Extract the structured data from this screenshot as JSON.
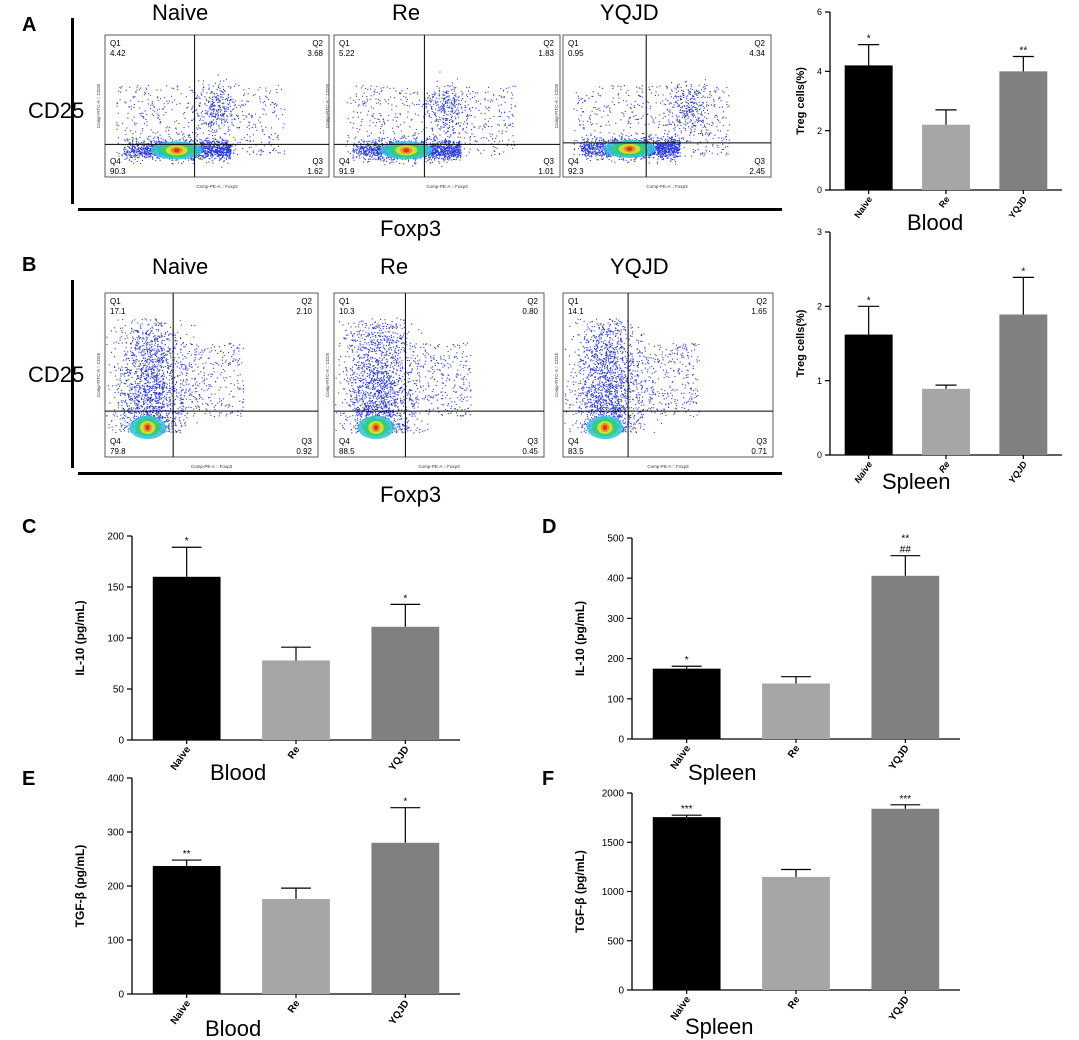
{
  "panel_letters": [
    "A",
    "B",
    "C",
    "D",
    "E",
    "F"
  ],
  "flow": {
    "groups": [
      "Naive",
      "Re",
      "YQJD"
    ],
    "ylabel": "CD25",
    "xlabel": "Foxp3",
    "plot_x_axis": "Comp-PE-A :: Foxp3",
    "plot_y_axis": "Comp-FITC-A :: CD25",
    "rows": [
      {
        "panel": "A",
        "quadrants": [
          {
            "Q1": "4.42",
            "Q2": "3.68",
            "Q3": "1.62",
            "Q4": "90.3"
          },
          {
            "Q1": "5.22",
            "Q2": "1.83",
            "Q3": "1.01",
            "Q4": "91.9"
          },
          {
            "Q1": "0.95",
            "Q2": "4.34",
            "Q3": "2.45",
            "Q4": "92.3"
          }
        ]
      },
      {
        "panel": "B",
        "quadrants": [
          {
            "Q1": "17.1",
            "Q2": "2.10",
            "Q3": "0.92",
            "Q4": "79.8"
          },
          {
            "Q1": "10.3",
            "Q2": "0.80",
            "Q3": "0.45",
            "Q4": "88.5"
          },
          {
            "Q1": "14.1",
            "Q2": "1.65",
            "Q3": "0.71",
            "Q4": "83.5"
          }
        ]
      }
    ]
  },
  "chart_data": [
    {
      "id": "A-bar",
      "type": "bar",
      "title": "",
      "xlabel": "Blood",
      "ylabel": "Treg cells(%)",
      "categories": [
        "Naive",
        "Re",
        "YQJD"
      ],
      "values": [
        4.2,
        2.2,
        4.0
      ],
      "errors": [
        0.7,
        0.5,
        0.5
      ],
      "annotations": [
        "*",
        "",
        "**"
      ],
      "ylim": [
        0,
        6
      ],
      "yticks": [
        0,
        2,
        4,
        6
      ],
      "italic_ticks": false,
      "colors": [
        "#000000",
        "#a6a6a9",
        "#808080"
      ]
    },
    {
      "id": "B-bar",
      "type": "bar",
      "title": "",
      "xlabel": "Spleen",
      "ylabel": "Treg cells(%)",
      "categories": [
        "Naive",
        "Re",
        "YQJD"
      ],
      "values": [
        1.62,
        0.89,
        1.89
      ],
      "errors": [
        0.38,
        0.05,
        0.5
      ],
      "annotations": [
        "*",
        "",
        "*"
      ],
      "ylim": [
        0,
        3
      ],
      "yticks": [
        0,
        1,
        2,
        3
      ],
      "italic_ticks": true,
      "colors": [
        "#000000",
        "#a6a6a9",
        "#808080"
      ]
    },
    {
      "id": "C",
      "type": "bar",
      "title": "",
      "xlabel": "Blood",
      "ylabel": "IL-10 (pg/mL)",
      "categories": [
        "Naive",
        "Re",
        "YQJD"
      ],
      "values": [
        160,
        78,
        111
      ],
      "errors": [
        29,
        13,
        22
      ],
      "annotations": [
        "*",
        "",
        "*"
      ],
      "ylim": [
        0,
        200
      ],
      "yticks": [
        0,
        50,
        100,
        150,
        200
      ],
      "italic_ticks": false,
      "colors": [
        "#000000",
        "#a6a6a9",
        "#808080"
      ]
    },
    {
      "id": "D",
      "type": "bar",
      "title": "",
      "xlabel": "Spleen",
      "ylabel": "IL-10 (pg/mL)",
      "categories": [
        "Naive",
        "Re",
        "YQJD"
      ],
      "values": [
        175,
        138,
        406
      ],
      "errors": [
        6,
        17,
        50
      ],
      "annotations": [
        "*",
        "",
        "**\n##"
      ],
      "ylim": [
        0,
        500
      ],
      "yticks": [
        0,
        100,
        200,
        300,
        400,
        500
      ],
      "italic_ticks": false,
      "colors": [
        "#000000",
        "#a6a6a9",
        "#808080"
      ]
    },
    {
      "id": "E",
      "type": "bar",
      "title": "",
      "xlabel": "Blood",
      "ylabel": "TGF-β (pg/mL)",
      "categories": [
        "Naive",
        "Re",
        "YQJD"
      ],
      "values": [
        237,
        176,
        280
      ],
      "errors": [
        11,
        20,
        65
      ],
      "annotations": [
        "**",
        "",
        "*"
      ],
      "ylim": [
        0,
        400
      ],
      "yticks": [
        0,
        100,
        200,
        300,
        400
      ],
      "italic_ticks": false,
      "colors": [
        "#000000",
        "#a6a6a9",
        "#808080"
      ]
    },
    {
      "id": "F",
      "type": "bar",
      "title": "",
      "xlabel": "Spleen",
      "ylabel": "TGF-β (pg/mL)",
      "categories": [
        "Naive",
        "Re",
        "YQJD"
      ],
      "values": [
        1755,
        1148,
        1840
      ],
      "errors": [
        20,
        75,
        40
      ],
      "annotations": [
        "***",
        "",
        "***"
      ],
      "ylim": [
        0,
        2000
      ],
      "yticks": [
        0,
        500,
        1000,
        1500,
        2000
      ],
      "italic_ticks": false,
      "colors": [
        "#000000",
        "#a6a6a9",
        "#808080"
      ]
    }
  ]
}
